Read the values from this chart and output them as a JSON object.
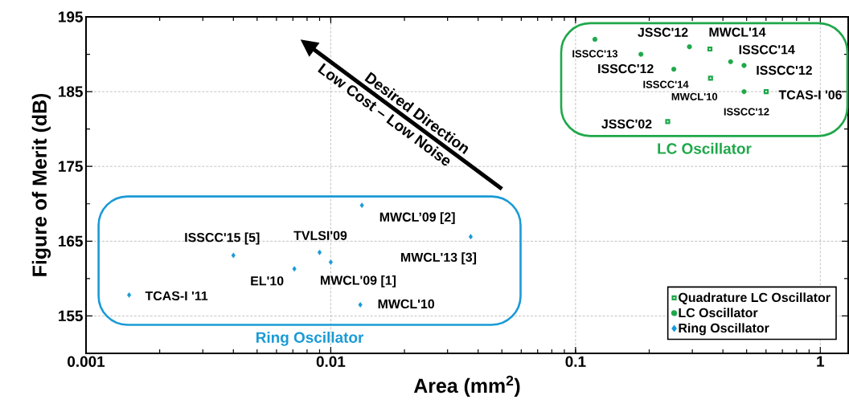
{
  "chart_data": {
    "type": "scatter",
    "xlabel": "Area (mm$^{2}$)",
    "ylabel": "Figure of Merit (dB)",
    "log": "x",
    "grid": true,
    "legend": "bottom right",
    "xlim": [
      0.001,
      1.3
    ],
    "xticks": [
      0.001,
      0.01,
      0.1,
      1
    ],
    "ylim": [
      150,
      195
    ],
    "yticks": [
      155,
      165,
      175,
      185,
      195
    ],
    "series": [
      {
        "name": "Quadrature LC Oscillator",
        "color": "#1ea84a",
        "marker": "square",
        "x": [
          0.354,
          0.356,
          0.601,
          0.238
        ],
        "values": [
          190.7,
          186.8,
          185.0,
          181.0
        ]
      },
      {
        "name": "LC Oscillator",
        "color": "#1ea84a",
        "marker": "circle",
        "x": [
          0.12,
          0.185,
          0.292,
          0.252,
          0.43,
          0.488,
          0.488
        ],
        "values": [
          192.0,
          190.0,
          191.0,
          188.0,
          189.0,
          188.5,
          185.0
        ]
      },
      {
        "name": "Ring Oscillator",
        "color": "#1a9ad6",
        "marker": "diamond",
        "x": [
          0.0015,
          0.004,
          0.0071,
          0.009,
          0.01,
          0.0134,
          0.0132,
          0.0373
        ],
        "values": [
          157.8,
          163.1,
          161.3,
          163.5,
          162.2,
          169.8,
          156.5,
          165.6
        ]
      }
    ],
    "annotations": [
      {
        "text": "MWCL'14",
        "x": 0.354,
        "y": 190.7
      },
      {
        "text": "MWCL'10",
        "x": 0.356,
        "y": 186.8
      },
      {
        "text": "TCAS-I '06",
        "x": 0.601,
        "y": 185.0
      },
      {
        "text": "JSSC'02",
        "x": 0.238,
        "y": 181.0
      },
      {
        "text": "ISSCC'13",
        "x": 0.12,
        "y": 192.0
      },
      {
        "text": "ISSCC'12",
        "x": 0.185,
        "y": 190.0
      },
      {
        "text": "JSSC'12",
        "x": 0.292,
        "y": 191.0
      },
      {
        "text": "ISSCC'14",
        "x": 0.252,
        "y": 188.0
      },
      {
        "text": "ISSCC'14",
        "x": 0.43,
        "y": 189.0
      },
      {
        "text": "ISSCC'12",
        "x": 0.488,
        "y": 188.5
      },
      {
        "text": "ISSCC'12",
        "x": 0.488,
        "y": 185.0
      },
      {
        "text": "TCAS-I '11",
        "x": 0.0015,
        "y": 157.8
      },
      {
        "text": "ISSCC'15 [5]",
        "x": 0.004,
        "y": 163.1
      },
      {
        "text": "EL'10",
        "x": 0.0071,
        "y": 161.3
      },
      {
        "text": "TVLSI'09",
        "x": 0.009,
        "y": 163.5
      },
      {
        "text": "MWCL'09 [1]",
        "x": 0.01,
        "y": 162.2
      },
      {
        "text": "MWCL’09 [2]",
        "x": 0.0134,
        "y": 169.8
      },
      {
        "text": "MWCL'10",
        "x": 0.0132,
        "y": 156.5
      },
      {
        "text": "MWCL'13 [3]",
        "x": 0.0373,
        "y": 165.6
      },
      "Desired Direction",
      "Low Cost – Low Noise",
      "LC Oscillator",
      "Ring Oscillator"
    ]
  }
}
